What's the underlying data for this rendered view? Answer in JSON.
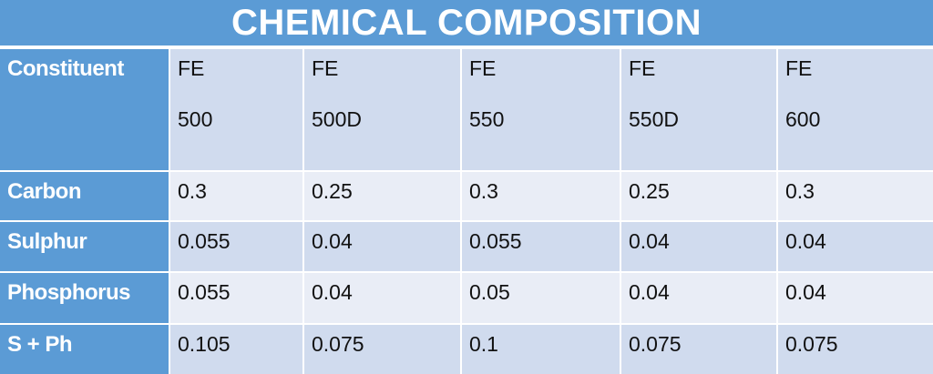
{
  "title": "CHEMICAL COMPOSITION",
  "table": {
    "header": {
      "label": "Constituent",
      "columns": [
        [
          "FE",
          "500"
        ],
        [
          "FE",
          "500D"
        ],
        [
          "FE",
          "550"
        ],
        [
          "FE",
          "550D"
        ],
        [
          "FE",
          "600"
        ]
      ]
    },
    "rows": [
      [
        "Carbon",
        0.3,
        0.25,
        0.3,
        0.25,
        0.3
      ],
      [
        "Sulphur",
        0.055,
        0.04,
        0.055,
        0.04,
        0.04
      ],
      [
        "Phosphorus",
        0.055,
        0.04,
        0.05,
        0.04,
        0.04
      ],
      [
        "S + Ph",
        0.105,
        0.075,
        0.1,
        0.075,
        0.075
      ]
    ]
  }
}
